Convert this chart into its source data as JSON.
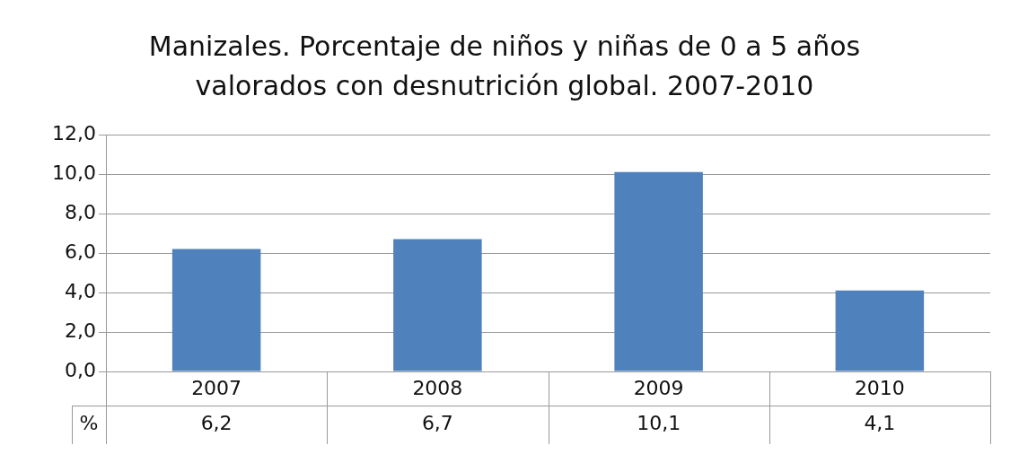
{
  "chart_data": {
    "type": "bar",
    "title": "Manizales. Porcentaje de niños y niñas de 0 a 5 años valorados con desnutrición global. 2007-2010",
    "categories": [
      "2007",
      "2008",
      "2009",
      "2010"
    ],
    "series": [
      {
        "name": "%",
        "color": "#4f81bd",
        "values": [
          6.2,
          6.7,
          10.1,
          4.1
        ],
        "value_labels": [
          "6,2",
          "6,7",
          "10,1",
          "4,1"
        ]
      }
    ],
    "ylim": [
      0,
      12
    ],
    "yticks": [
      {
        "value": 0,
        "label": "0,0"
      },
      {
        "value": 2,
        "label": "2,0"
      },
      {
        "value": 4,
        "label": "4,0"
      },
      {
        "value": 6,
        "label": "6,0"
      },
      {
        "value": 8,
        "label": "8,0"
      },
      {
        "value": 10,
        "label": "10,0"
      },
      {
        "value": 12,
        "label": "12,0"
      }
    ],
    "grid": "y",
    "legend": false
  }
}
